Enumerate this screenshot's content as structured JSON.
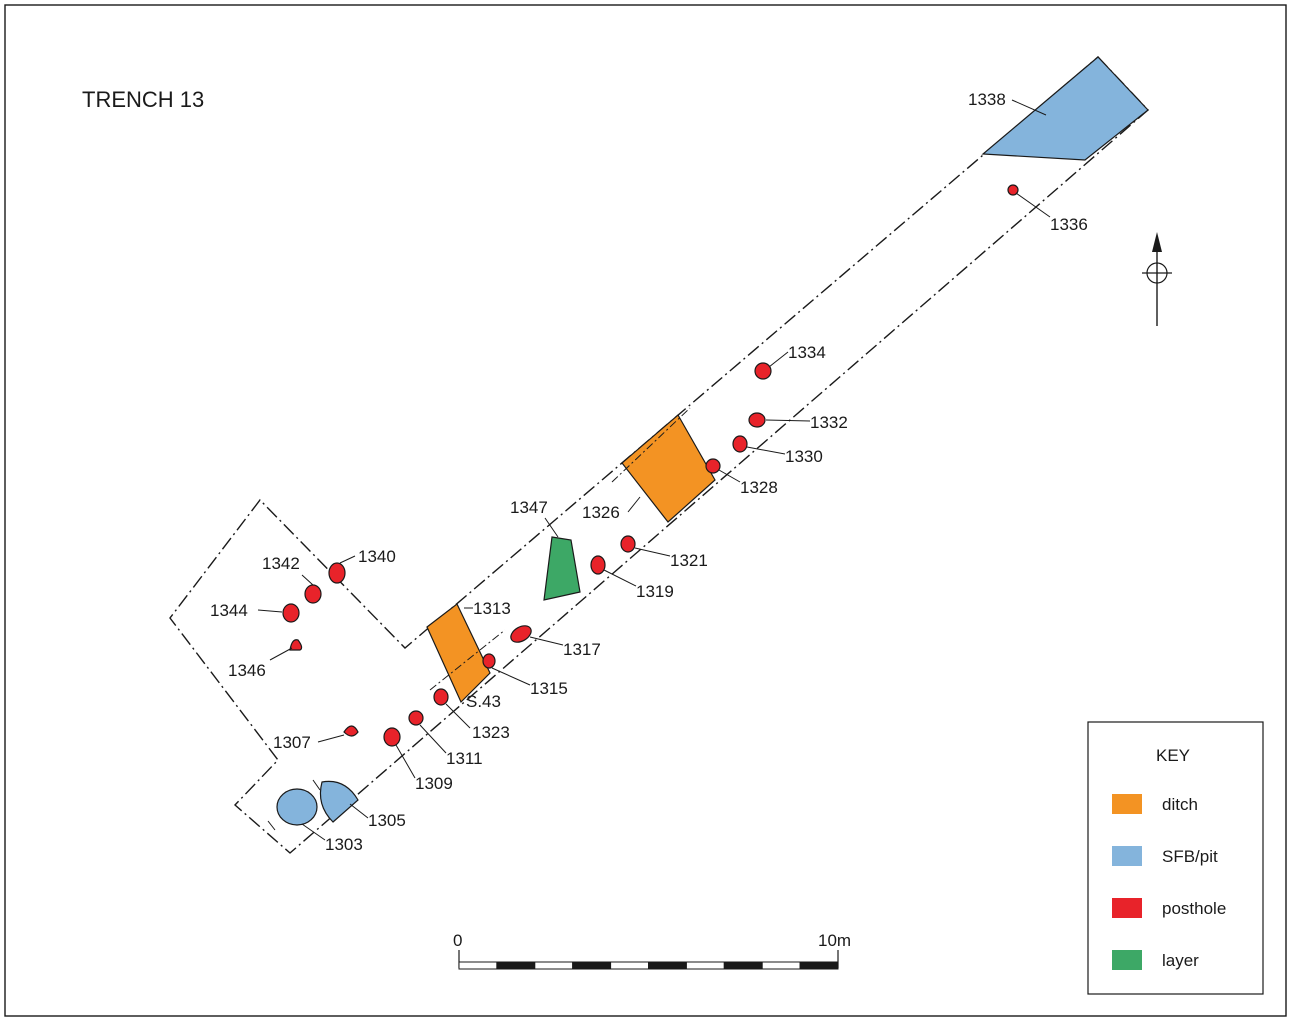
{
  "title": "TRENCH  13",
  "colors": {
    "ditch": "#f39323",
    "sfb_pit": "#84b4dc",
    "posthole": "#e8232a",
    "layer": "#3da866"
  },
  "features": {
    "f1303": "1303",
    "f1305": "1305",
    "f1307": "1307",
    "f1309": "1309",
    "f1311": "1311",
    "f1313": "1313",
    "f1315": "1315",
    "f1317": "1317",
    "f1319": "1319",
    "f1321": "1321",
    "f1323": "1323",
    "f1326": "1326",
    "f1328": "1328",
    "f1330": "1330",
    "f1332": "1332",
    "f1334": "1334",
    "f1336": "1336",
    "f1338": "1338",
    "f1340": "1340",
    "f1342": "1342",
    "f1344": "1344",
    "f1346": "1346",
    "f1347": "1347"
  },
  "section_label": "S.43",
  "key": {
    "title": "KEY",
    "items": [
      {
        "label": "ditch",
        "color": "#f39323"
      },
      {
        "label": "SFB/pit",
        "color": "#84b4dc"
      },
      {
        "label": "posthole",
        "color": "#e8232a"
      },
      {
        "label": "layer",
        "color": "#3da866"
      }
    ]
  },
  "scale": {
    "start": "0",
    "end": "10m"
  },
  "north_arrow": "north-arrow-icon"
}
